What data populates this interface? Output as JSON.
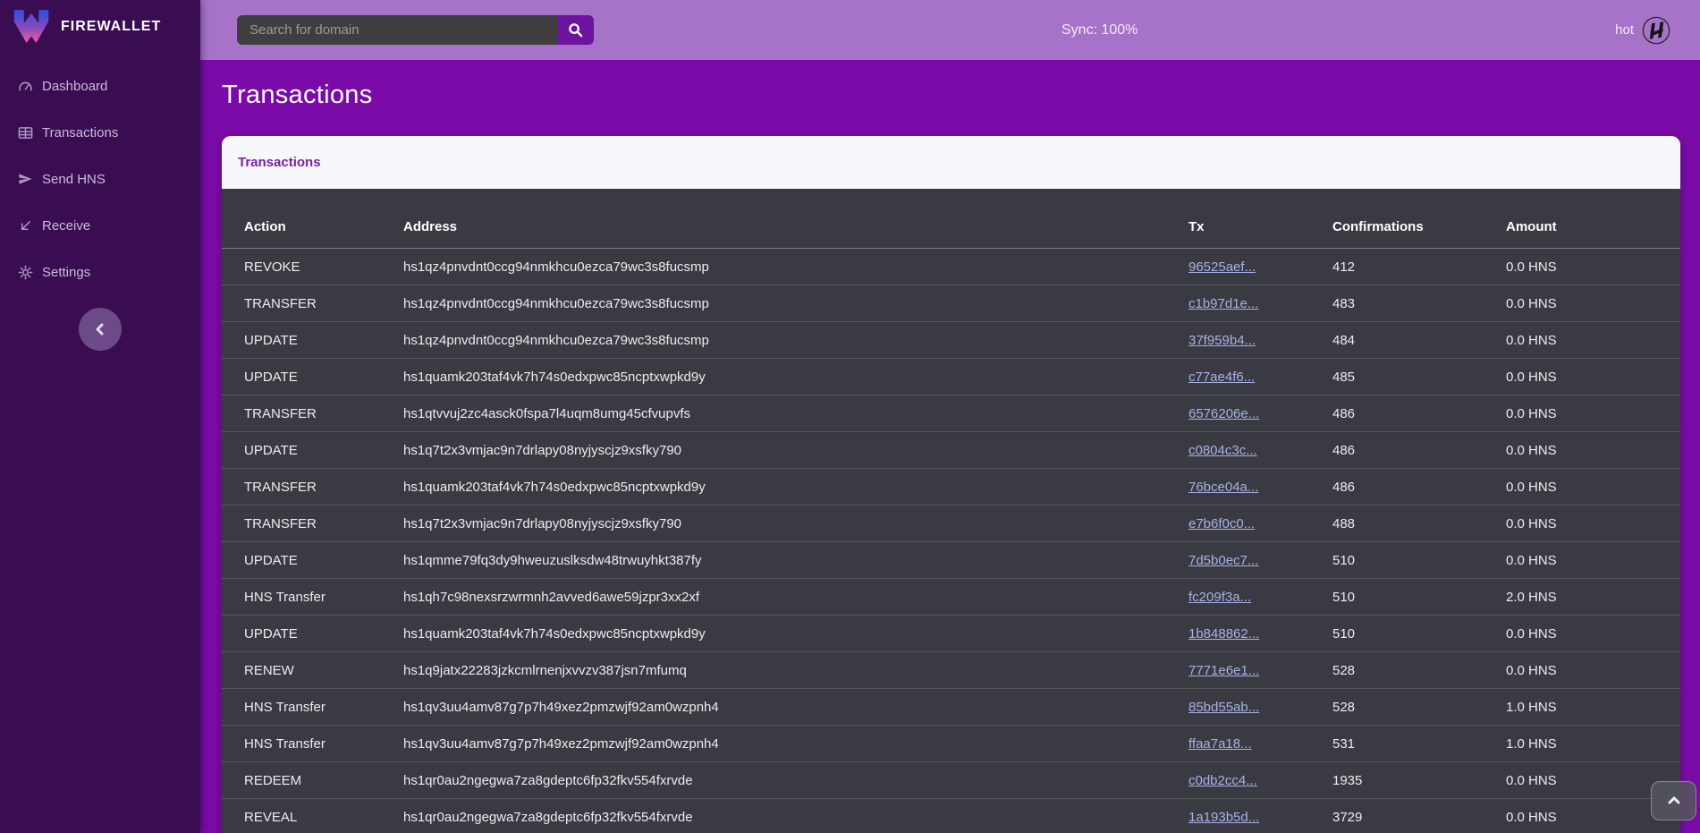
{
  "brand": {
    "name": "FIREWALLET",
    "logo_icon": "firewallet-w-logo"
  },
  "sidebar": {
    "items": [
      {
        "label": "Dashboard",
        "icon": "gauge-icon"
      },
      {
        "label": "Transactions",
        "icon": "table-icon"
      },
      {
        "label": "Send HNS",
        "icon": "send-icon"
      },
      {
        "label": "Receive",
        "icon": "receive-arrow-icon"
      },
      {
        "label": "Settings",
        "icon": "gear-icon"
      }
    ],
    "collapse_icon": "chevron-left-icon"
  },
  "topbar": {
    "search_placeholder": "Search for domain",
    "search_icon": "magnifier-icon",
    "sync_label": "Sync: 100%",
    "wallet_label": "hot",
    "wallet_icon": "handshake-logo-icon"
  },
  "page": {
    "title": "Transactions"
  },
  "card": {
    "title": "Transactions"
  },
  "table": {
    "columns": [
      "Action",
      "Address",
      "Tx",
      "Confirmations",
      "Amount"
    ],
    "rows": [
      {
        "action": "REVOKE",
        "address": "hs1qz4pnvdnt0ccg94nmkhcu0ezca79wc3s8fucsmp",
        "tx": "96525aef...",
        "confirmations": "412",
        "amount": "0.0 HNS"
      },
      {
        "action": "TRANSFER",
        "address": "hs1qz4pnvdnt0ccg94nmkhcu0ezca79wc3s8fucsmp",
        "tx": "c1b97d1e...",
        "confirmations": "483",
        "amount": "0.0 HNS"
      },
      {
        "action": "UPDATE",
        "address": "hs1qz4pnvdnt0ccg94nmkhcu0ezca79wc3s8fucsmp",
        "tx": "37f959b4...",
        "confirmations": "484",
        "amount": "0.0 HNS"
      },
      {
        "action": "UPDATE",
        "address": "hs1quamk203taf4vk7h74s0edxpwc85ncptxwpkd9y",
        "tx": "c77ae4f6...",
        "confirmations": "485",
        "amount": "0.0 HNS"
      },
      {
        "action": "TRANSFER",
        "address": "hs1qtvvuj2zc4asck0fspa7l4uqm8umg45cfvupvfs",
        "tx": "6576206e...",
        "confirmations": "486",
        "amount": "0.0 HNS"
      },
      {
        "action": "UPDATE",
        "address": "hs1q7t2x3vmjac9n7drlapy08nyjyscjz9xsfky790",
        "tx": "c0804c3c...",
        "confirmations": "486",
        "amount": "0.0 HNS"
      },
      {
        "action": "TRANSFER",
        "address": "hs1quamk203taf4vk7h74s0edxpwc85ncptxwpkd9y",
        "tx": "76bce04a...",
        "confirmations": "486",
        "amount": "0.0 HNS"
      },
      {
        "action": "TRANSFER",
        "address": "hs1q7t2x3vmjac9n7drlapy08nyjyscjz9xsfky790",
        "tx": "e7b6f0c0...",
        "confirmations": "488",
        "amount": "0.0 HNS"
      },
      {
        "action": "UPDATE",
        "address": "hs1qmme79fq3dy9hweuzuslksdw48trwuyhkt387fy",
        "tx": "7d5b0ec7...",
        "confirmations": "510",
        "amount": "0.0 HNS"
      },
      {
        "action": "HNS Transfer",
        "address": "hs1qh7c98nexsrzwrmnh2avved6awe59jzpr3xx2xf",
        "tx": "fc209f3a...",
        "confirmations": "510",
        "amount": "2.0 HNS"
      },
      {
        "action": "UPDATE",
        "address": "hs1quamk203taf4vk7h74s0edxpwc85ncptxwpkd9y",
        "tx": "1b848862...",
        "confirmations": "510",
        "amount": "0.0 HNS"
      },
      {
        "action": "RENEW",
        "address": "hs1q9jatx22283jzkcmlrnenjxvvzv387jsn7mfumq",
        "tx": "7771e6e1...",
        "confirmations": "528",
        "amount": "0.0 HNS"
      },
      {
        "action": "HNS Transfer",
        "address": "hs1qv3uu4amv87g7p7h49xez2pmzwjf92am0wzpnh4",
        "tx": "85bd55ab...",
        "confirmations": "528",
        "amount": "1.0 HNS"
      },
      {
        "action": "HNS Transfer",
        "address": "hs1qv3uu4amv87g7p7h49xez2pmzwjf92am0wzpnh4",
        "tx": "ffaa7a18...",
        "confirmations": "531",
        "amount": "1.0 HNS"
      },
      {
        "action": "REDEEM",
        "address": "hs1qr0au2ngegwa7za8gdeptc6fp32fkv554fxrvde",
        "tx": "c0db2cc4...",
        "confirmations": "1935",
        "amount": "0.0 HNS"
      },
      {
        "action": "REVEAL",
        "address": "hs1qr0au2ngegwa7za8gdeptc6fp32fkv554fxrvde",
        "tx": "1a193b5d...",
        "confirmations": "3729",
        "amount": "0.0 HNS"
      }
    ]
  },
  "scroll_top": {
    "icon": "chevron-up-icon"
  },
  "colors": {
    "sidebar_bg": "#3a0d52",
    "topbar_bg": "#a673c8",
    "main_bg": "#7a0ba8",
    "card_header_bg": "#f7f8fc",
    "card_title_text": "#7b1fa2",
    "table_bg": "#3a3b42",
    "tx_link": "#a8b0e6",
    "search_button_bg": "#6c13a0",
    "logo_gradient_top": "#2b4fe0",
    "logo_gradient_bottom": "#ef5da8"
  }
}
